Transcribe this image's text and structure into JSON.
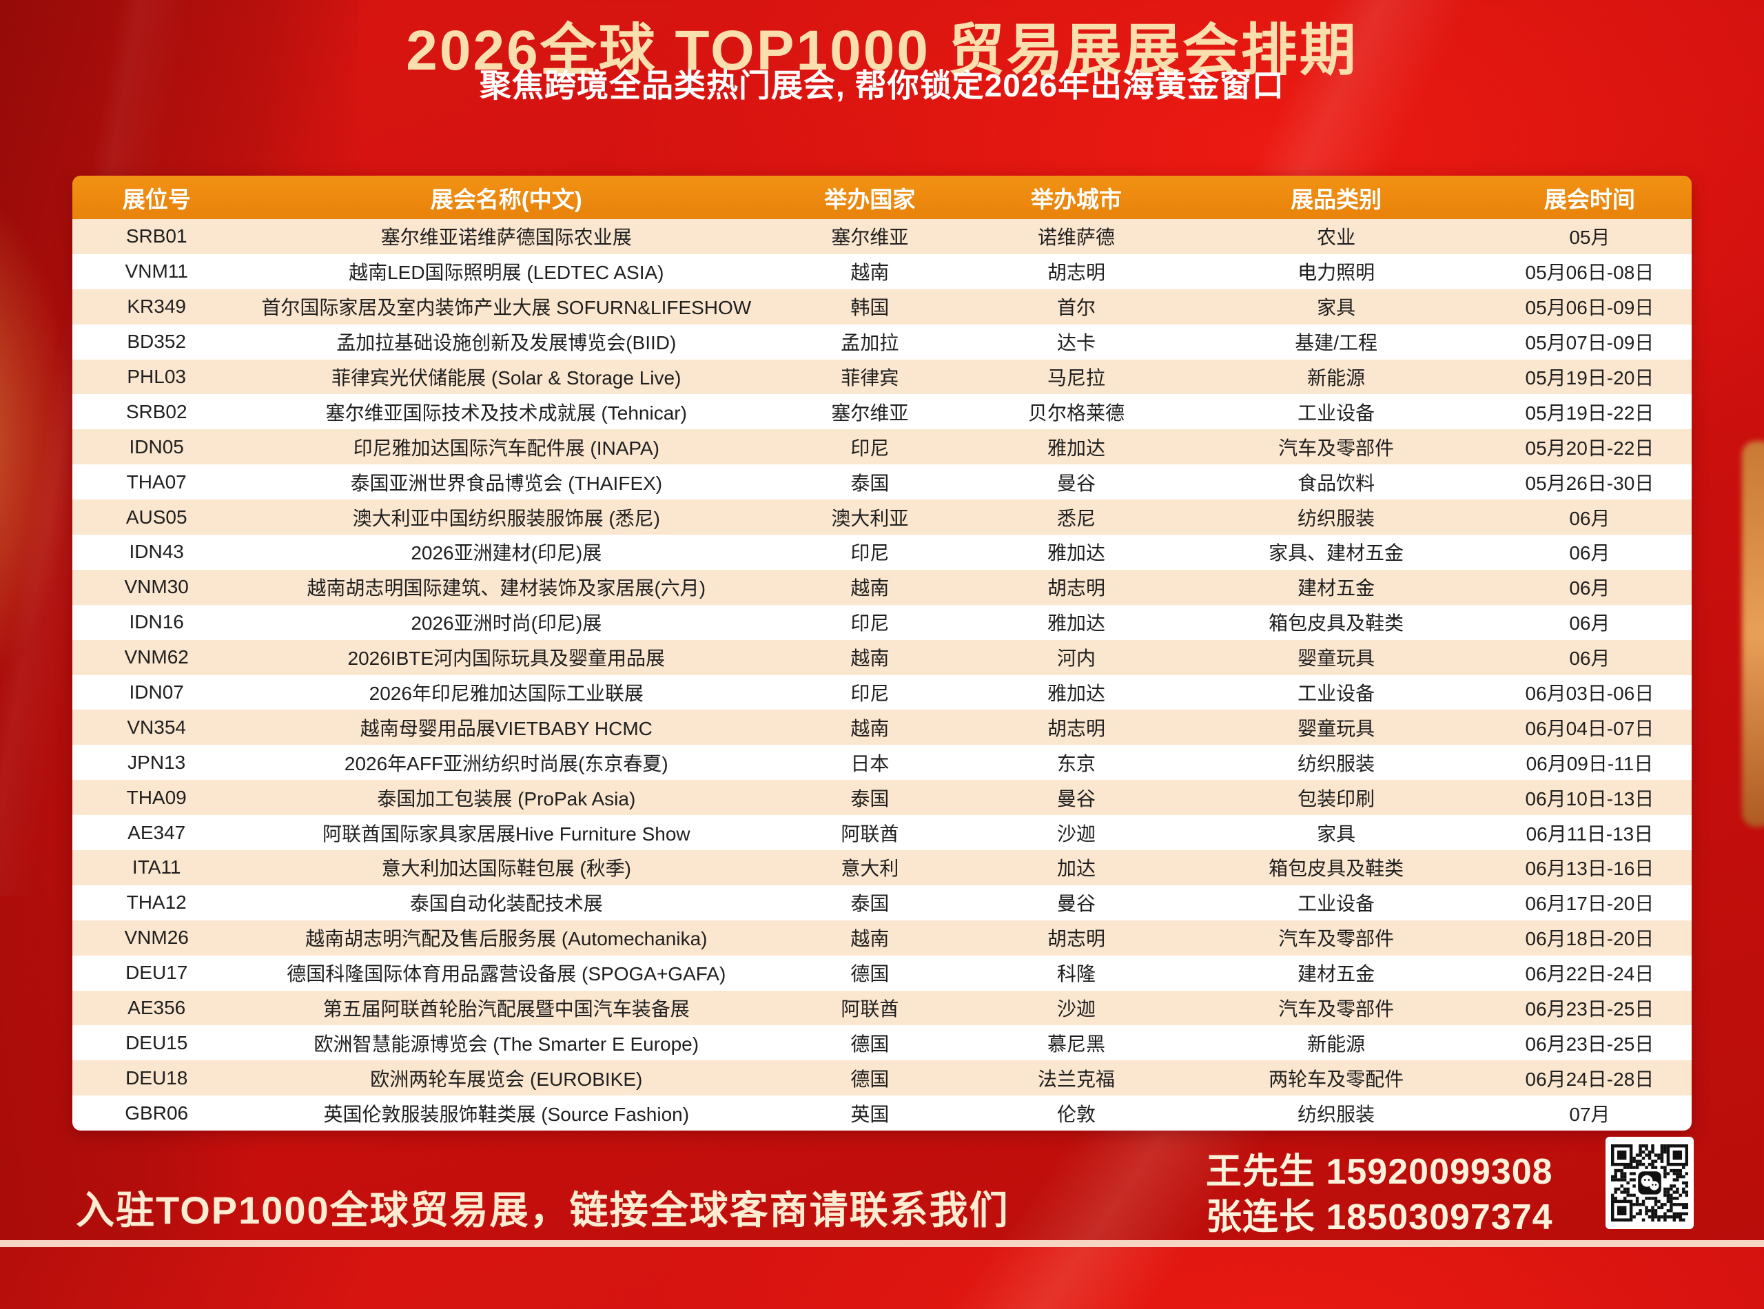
{
  "header": {
    "title": "2026全球 TOP1000 贸易展展会排期",
    "subtitle": "聚焦跨境全品类热门展会, 帮你锁定2026年出海黄金窗口"
  },
  "table": {
    "columns": [
      "展位号",
      "展会名称(中文)",
      "举办国家",
      "举办城市",
      "展品类别",
      "展会时间"
    ],
    "column_keys": [
      "booth",
      "name",
      "country",
      "city",
      "category",
      "dates"
    ],
    "rows": [
      [
        "SRB01",
        "塞尔维亚诺维萨德国际农业展",
        "塞尔维亚",
        "诺维萨德",
        "农业",
        "05月"
      ],
      [
        "VNM11",
        "越南LED国际照明展 (LEDTEC ASIA)",
        "越南",
        "胡志明",
        "电力照明",
        "05月06日-08日"
      ],
      [
        "KR349",
        "首尔国际家居及室内装饰产业大展 SOFURN&LIFESHOW",
        "韩国",
        "首尔",
        "家具",
        "05月06日-09日"
      ],
      [
        "BD352",
        "孟加拉基础设施创新及发展博览会(BIID)",
        "孟加拉",
        "达卡",
        "基建/工程",
        "05月07日-09日"
      ],
      [
        "PHL03",
        "菲律宾光伏储能展 (Solar & Storage Live)",
        "菲律宾",
        "马尼拉",
        "新能源",
        "05月19日-20日"
      ],
      [
        "SRB02",
        "塞尔维亚国际技术及技术成就展 (Tehnicar)",
        "塞尔维亚",
        "贝尔格莱德",
        "工业设备",
        "05月19日-22日"
      ],
      [
        "IDN05",
        "印尼雅加达国际汽车配件展 (INAPA)",
        "印尼",
        "雅加达",
        "汽车及零部件",
        "05月20日-22日"
      ],
      [
        "THA07",
        "泰国亚洲世界食品博览会 (THAIFEX)",
        "泰国",
        "曼谷",
        "食品饮料",
        "05月26日-30日"
      ],
      [
        "AUS05",
        "澳大利亚中国纺织服装服饰展 (悉尼)",
        "澳大利亚",
        "悉尼",
        "纺织服装",
        "06月"
      ],
      [
        "IDN43",
        "2026亚洲建材(印尼)展",
        "印尼",
        "雅加达",
        "家具、建材五金",
        "06月"
      ],
      [
        "VNM30",
        "越南胡志明国际建筑、建材装饰及家居展(六月)",
        "越南",
        "胡志明",
        "建材五金",
        "06月"
      ],
      [
        "IDN16",
        "2026亚洲时尚(印尼)展",
        "印尼",
        "雅加达",
        "箱包皮具及鞋类",
        "06月"
      ],
      [
        "VNM62",
        "2026IBTE河内国际玩具及婴童用品展",
        "越南",
        "河内",
        "婴童玩具",
        "06月"
      ],
      [
        "IDN07",
        "2026年印尼雅加达国际工业联展",
        "印尼",
        "雅加达",
        "工业设备",
        "06月03日-06日"
      ],
      [
        "VN354",
        "越南母婴用品展VIETBABY HCMC",
        "越南",
        "胡志明",
        "婴童玩具",
        "06月04日-07日"
      ],
      [
        "JPN13",
        "2026年AFF亚洲纺织时尚展(东京春夏)",
        "日本",
        "东京",
        "纺织服装",
        "06月09日-11日"
      ],
      [
        "THA09",
        "泰国加工包装展 (ProPak Asia)",
        "泰国",
        "曼谷",
        "包装印刷",
        "06月10日-13日"
      ],
      [
        "AE347",
        "阿联酋国际家具家居展Hive Furniture Show",
        "阿联酋",
        "沙迦",
        "家具",
        "06月11日-13日"
      ],
      [
        "ITA11",
        "意大利加达国际鞋包展 (秋季)",
        "意大利",
        "加达",
        "箱包皮具及鞋类",
        "06月13日-16日"
      ],
      [
        "THA12",
        "泰国自动化装配技术展",
        "泰国",
        "曼谷",
        "工业设备",
        "06月17日-20日"
      ],
      [
        "VNM26",
        "越南胡志明汽配及售后服务展 (Automechanika)",
        "越南",
        "胡志明",
        "汽车及零部件",
        "06月18日-20日"
      ],
      [
        "DEU17",
        "德国科隆国际体育用品露营设备展 (SPOGA+GAFA)",
        "德国",
        "科隆",
        "建材五金",
        "06月22日-24日"
      ],
      [
        "AE356",
        "第五届阿联酋轮胎汽配展暨中国汽车装备展",
        "阿联酋",
        "沙迦",
        "汽车及零部件",
        "06月23日-25日"
      ],
      [
        "DEU15",
        "欧洲智慧能源博览会 (The Smarter E Europe)",
        "德国",
        "慕尼黑",
        "新能源",
        "06月23日-25日"
      ],
      [
        "DEU18",
        "欧洲两轮车展览会 (EUROBIKE)",
        "德国",
        "法兰克福",
        "两轮车及零配件",
        "06月24日-28日"
      ],
      [
        "GBR06",
        "英国伦敦服装服饰鞋类展 (Source Fashion)",
        "英国",
        "伦敦",
        "纺织服装",
        "07月"
      ]
    ]
  },
  "footer": {
    "cta": "入驻TOP1000全球贸易展，链接全球客商请联系我们",
    "contacts": [
      {
        "name": "王先生",
        "phone": "15920099308"
      },
      {
        "name": "张连长",
        "phone": "18503097374"
      }
    ],
    "qr_icon": "wechat-qr-code"
  },
  "colors": {
    "background_red": "#cf100e",
    "header_orange": "#ee8b10",
    "row_peach": "#fbe6cf",
    "row_white": "#ffffff",
    "title_cream": "#f9dfae",
    "footer_cream": "#fcecd2"
  }
}
